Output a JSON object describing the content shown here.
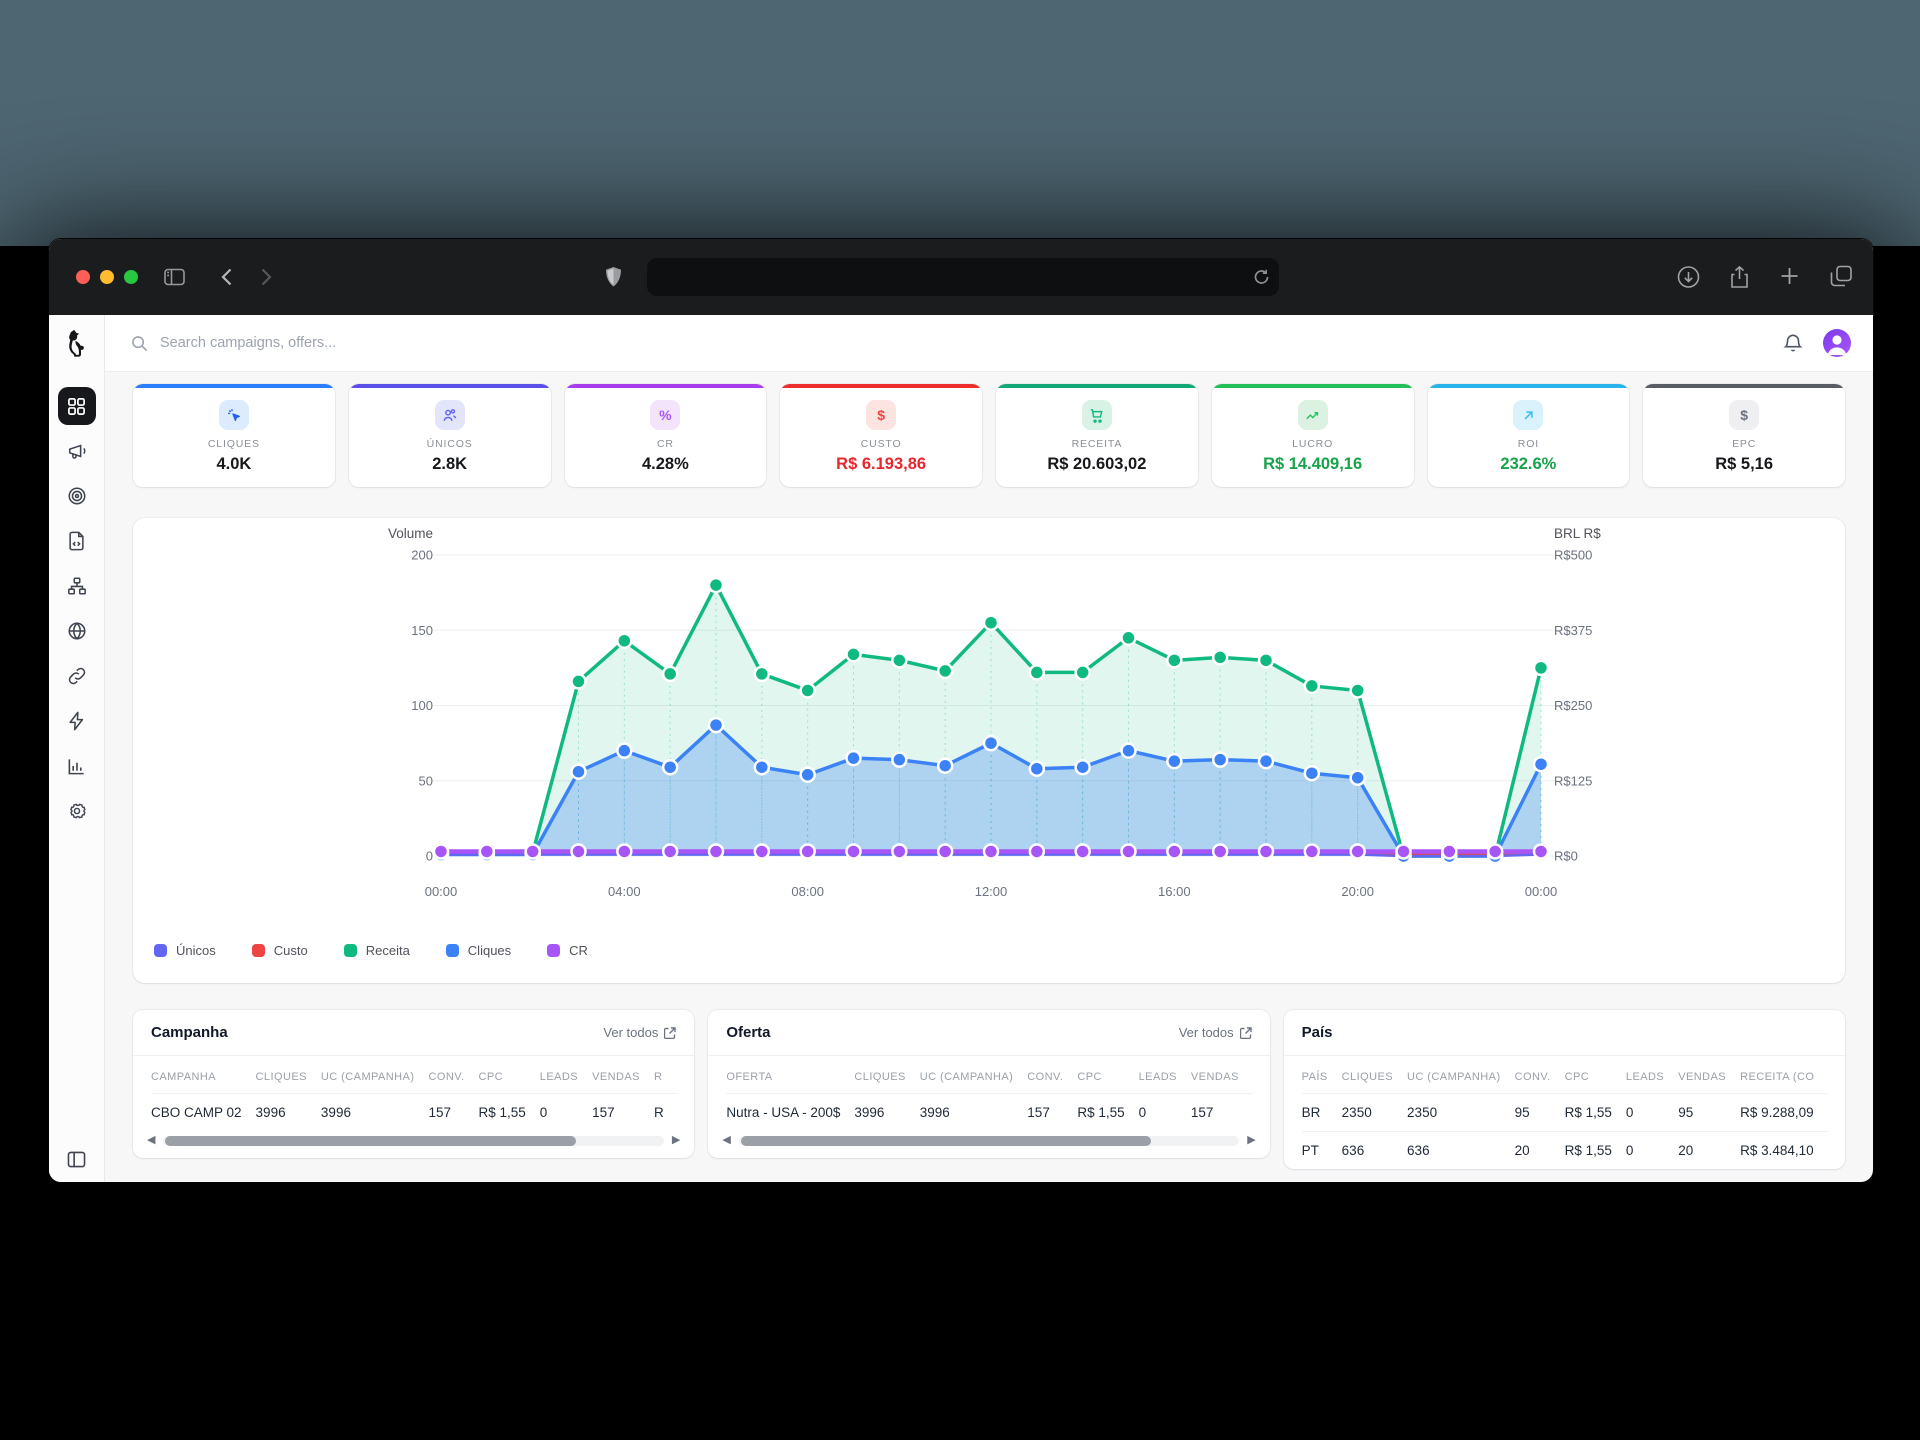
{
  "browser": {
    "url": "",
    "traffic_lights": [
      "#ff5f57",
      "#febc2e",
      "#28c840"
    ],
    "right_icons": [
      "download-icon",
      "share-icon",
      "new-tab-icon",
      "tab-overview-icon"
    ]
  },
  "header": {
    "search_placeholder": "Search campaigns, offers...",
    "icons": [
      "search-icon",
      "bell-icon",
      "avatar"
    ]
  },
  "sidebar": {
    "logo": "dog-logo",
    "items": [
      "dashboard",
      "campaigns",
      "offers",
      "landing-pages",
      "flows",
      "domains",
      "links",
      "integrations",
      "reports",
      "settings"
    ],
    "active_item": "dashboard",
    "bottom_icon": "panel-toggle"
  },
  "kpis": [
    {
      "label": "CLIQUES",
      "value": "4.0K",
      "accent": "#2b7fff",
      "tile_bg": "#dcebfd",
      "icon_color": "#2563eb",
      "icon": "click",
      "value_color": "#17181b"
    },
    {
      "label": "ÚNICOS",
      "value": "2.8K",
      "accent": "#5b4fe9",
      "tile_bg": "#e3e5fb",
      "icon_color": "#6366f1",
      "icon": "users",
      "value_color": "#17181b"
    },
    {
      "label": "CR",
      "value": "4.28%",
      "accent": "#a93cec",
      "tile_bg": "#f3e4fc",
      "icon_color": "#a855f7",
      "icon": "percent",
      "value_color": "#17181b"
    },
    {
      "label": "CUSTO",
      "value": "R$ 6.193,86",
      "accent": "#ee2d2d",
      "tile_bg": "#fce4e1",
      "icon_color": "#ef4444",
      "icon": "dollar",
      "value_color": "#e8262d"
    },
    {
      "label": "RECEITA",
      "value": "R$ 20.603,02",
      "accent": "#16a878",
      "tile_bg": "#d9f2e6",
      "icon_color": "#10b981",
      "icon": "cart",
      "value_color": "#17181b"
    },
    {
      "label": "LUCRO",
      "value": "R$ 14.409,16",
      "accent": "#23c05a",
      "tile_bg": "#dbf2e3",
      "icon_color": "#22c55e",
      "icon": "trend",
      "value_color": "#16a34a"
    },
    {
      "label": "ROI",
      "value": "232.6%",
      "accent": "#27b2e9",
      "tile_bg": "#d9f2fc",
      "icon_color": "#38bdf8",
      "icon": "arrow-up-right",
      "value_color": "#16a34a"
    },
    {
      "label": "EPC",
      "value": "R$ 5,16",
      "accent": "#585c64",
      "tile_bg": "#efeff1",
      "icon_color": "#6b7280",
      "icon": "dollar",
      "value_color": "#17181b"
    }
  ],
  "chart_data": {
    "type": "line",
    "left_axis": {
      "title": "Volume",
      "ticks": [
        0,
        50,
        100,
        150,
        200
      ],
      "max": 200
    },
    "right_axis": {
      "title": "BRL R$",
      "ticks": [
        "R$0",
        "R$125",
        "R$250",
        "R$375",
        "R$500"
      ]
    },
    "x": [
      "00:00",
      "01:00",
      "02:00",
      "03:00",
      "04:00",
      "05:00",
      "06:00",
      "07:00",
      "08:00",
      "09:00",
      "10:00",
      "11:00",
      "12:00",
      "13:00",
      "14:00",
      "15:00",
      "16:00",
      "17:00",
      "18:00",
      "19:00",
      "20:00",
      "21:00",
      "22:00",
      "23:00",
      "00:00"
    ],
    "x_major_tick_indices": [
      0,
      4,
      8,
      12,
      16,
      20,
      24
    ],
    "grid": true,
    "legend_position": "bottom-left",
    "series": [
      {
        "name": "Receita",
        "color": "#10b981",
        "fill": "rgba(16,185,129,0.13)",
        "markers": true,
        "width": 3.5,
        "values": [
          2,
          2,
          2,
          116,
          143,
          121,
          180,
          121,
          110,
          134,
          130,
          123,
          155,
          122,
          122,
          145,
          130,
          132,
          130,
          113,
          110,
          0,
          0,
          0,
          125
        ]
      },
      {
        "name": "Cliques",
        "color": "#3b82f6",
        "fill": "rgba(59,130,246,0.30)",
        "markers": true,
        "width": 3.5,
        "values": [
          1,
          1,
          1,
          56,
          70,
          59,
          87,
          59,
          54,
          65,
          64,
          60,
          75,
          58,
          59,
          70,
          63,
          64,
          63,
          55,
          52,
          0,
          0,
          0,
          61
        ]
      },
      {
        "name": "Custo",
        "color": "#ef4444",
        "fill": null,
        "markers": false,
        "width": 2.5,
        "values": [
          2,
          2,
          2,
          2,
          2,
          2,
          2,
          2,
          2,
          2,
          2,
          2,
          2,
          2,
          2,
          2,
          2,
          2,
          2,
          2,
          2,
          1,
          1,
          1,
          2
        ]
      },
      {
        "name": "Únicos",
        "color": "#6366f1",
        "fill": null,
        "markers": false,
        "width": 2.5,
        "values": [
          1,
          1,
          1,
          1,
          1,
          1,
          1,
          1,
          1,
          1,
          1,
          1,
          1,
          1,
          1,
          1,
          1,
          1,
          1,
          1,
          1,
          0,
          0,
          0,
          1
        ]
      },
      {
        "name": "CR",
        "color": "#a855f7",
        "fill": null,
        "markers": true,
        "width": 4.5,
        "values": [
          3,
          3,
          3,
          3,
          3,
          3,
          3,
          3,
          3,
          3,
          3,
          3,
          3,
          3,
          3,
          3,
          3,
          3,
          3,
          3,
          3,
          3,
          3,
          3,
          3
        ]
      }
    ],
    "legend": [
      {
        "label": "Únicos",
        "color": "#6366f1"
      },
      {
        "label": "Custo",
        "color": "#ef4444"
      },
      {
        "label": "Receita",
        "color": "#10b981"
      },
      {
        "label": "Cliques",
        "color": "#3b82f6"
      },
      {
        "label": "CR",
        "color": "#a855f7"
      }
    ]
  },
  "tables": {
    "campanha": {
      "title": "Campanha",
      "link": "Ver todos",
      "columns": [
        "CAMPANHA",
        "CLIQUES",
        "UC (CAMPANHA)",
        "CONV.",
        "CPC",
        "LEADS",
        "VENDAS",
        "R"
      ],
      "rows": [
        [
          "CBO CAMP 02",
          "3996",
          "3996",
          "157",
          "R$ 1,55",
          "0",
          "157",
          "R"
        ]
      ]
    },
    "oferta": {
      "title": "Oferta",
      "link": "Ver todos",
      "columns": [
        "OFERTA",
        "CLIQUES",
        "UC (CAMPANHA)",
        "CONV.",
        "CPC",
        "LEADS",
        "VENDAS"
      ],
      "rows": [
        [
          "Nutra - USA - 200$",
          "3996",
          "3996",
          "157",
          "R$ 1,55",
          "0",
          "157"
        ]
      ]
    },
    "pais": {
      "title": "País",
      "columns": [
        "PAÍS",
        "CLIQUES",
        "UC (CAMPANHA)",
        "CONV.",
        "CPC",
        "LEADS",
        "VENDAS",
        "RECEITA (CO"
      ],
      "rows": [
        [
          "BR",
          "2350",
          "2350",
          "95",
          "R$ 1,55",
          "0",
          "95",
          "R$ 9.288,09"
        ],
        [
          "PT",
          "636",
          "636",
          "20",
          "R$ 1,55",
          "0",
          "20",
          "R$ 3.484,10"
        ]
      ]
    }
  }
}
